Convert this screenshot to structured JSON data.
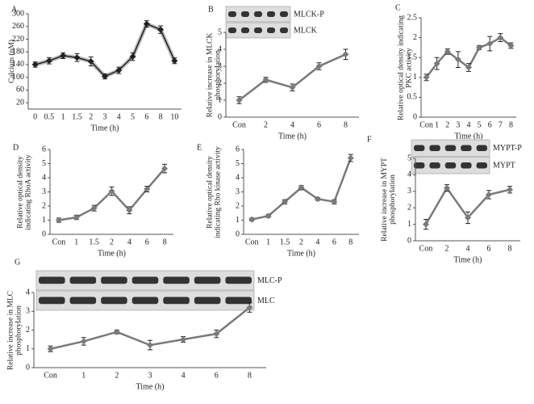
{
  "chart_data": [
    {
      "type": "line",
      "panel_label": "A",
      "ylabel": "Calcium (nM)",
      "xlabel": "Time (h)",
      "categories": [
        "0",
        "0.5",
        "1",
        "1.5",
        "2",
        "3",
        "4",
        "5",
        "6",
        "8",
        "10"
      ],
      "series": [
        {
          "color": "#222222",
          "values": [
            140,
            152,
            168,
            162,
            150,
            103,
            122,
            165,
            268,
            250,
            152
          ],
          "errors": [
            8,
            10,
            9,
            12,
            14,
            8,
            10,
            12,
            10,
            12,
            9
          ]
        }
      ],
      "ylim": [
        0,
        300
      ],
      "yticks": [
        20,
        60,
        100,
        140,
        180,
        220,
        260,
        300
      ]
    },
    {
      "type": "line",
      "panel_label": "B",
      "ylabel": "Relative increase in MLCK phosphorylation",
      "xlabel": "Time (h)",
      "blot_labels": [
        "MLCK-P",
        "MLCK"
      ],
      "categories": [
        "Con",
        "2",
        "4",
        "6",
        "8"
      ],
      "series": [
        {
          "color": "#7a7a7a",
          "values": [
            1,
            2.2,
            1.75,
            3,
            3.7
          ],
          "errors": [
            0.2,
            0.15,
            0.2,
            0.2,
            0.3
          ]
        }
      ],
      "ylim": [
        0,
        5
      ],
      "yticks": [
        0,
        1,
        2,
        3,
        4,
        5
      ]
    },
    {
      "type": "line",
      "panel_label": "C",
      "ylabel": "Relative optical density indicating PKC activity",
      "xlabel": "Time (h)",
      "categories": [
        "Con",
        "1",
        "2",
        "3",
        "4",
        "5",
        "6",
        "7",
        "8"
      ],
      "series": [
        {
          "color": "#7a7a7a",
          "values": [
            1,
            1.35,
            1.65,
            1.45,
            1.25,
            1.75,
            1.85,
            2.0,
            1.8
          ],
          "errors": [
            0.08,
            0.15,
            0.07,
            0.2,
            0.1,
            0.05,
            0.18,
            0.1,
            0.07
          ]
        }
      ],
      "ylim": [
        0,
        2.5
      ],
      "yticks": [
        0,
        0.5,
        1,
        1.5,
        2,
        2.5
      ]
    },
    {
      "type": "line",
      "panel_label": "D",
      "ylabel": "Relative optical density indicating RhoA activity",
      "xlabel": "Time (h)",
      "categories": [
        "Con",
        "1",
        "1.5",
        "2",
        "4",
        "6",
        "8"
      ],
      "series": [
        {
          "color": "#7a7a7a",
          "values": [
            1,
            1.2,
            1.85,
            3.05,
            1.7,
            3.2,
            4.65
          ],
          "errors": [
            0.15,
            0.15,
            0.2,
            0.3,
            0.25,
            0.2,
            0.3
          ]
        }
      ],
      "ylim": [
        0,
        6
      ],
      "yticks": [
        0,
        1,
        2,
        3,
        4,
        5,
        6
      ]
    },
    {
      "type": "line",
      "panel_label": "E",
      "ylabel": "Relative optical density indicating Rho kinase activity",
      "xlabel": "Time (h)",
      "categories": [
        "Con",
        "1",
        "1.5",
        "2",
        "4",
        "6",
        "8"
      ],
      "series": [
        {
          "color": "#7a7a7a",
          "values": [
            1.05,
            1.3,
            2.3,
            3.3,
            2.5,
            2.3,
            5.4
          ],
          "errors": [
            0.1,
            0.1,
            0.15,
            0.15,
            0.1,
            0.15,
            0.25
          ]
        }
      ],
      "ylim": [
        0,
        6
      ],
      "yticks": [
        0,
        1,
        2,
        3,
        4,
        5,
        6
      ]
    },
    {
      "type": "line",
      "panel_label": "F",
      "ylabel": "Relative increase in MYPT phosphorylation",
      "xlabel": "Time (h)",
      "blot_labels": [
        "MYPT-P",
        "MYPT"
      ],
      "categories": [
        "Con",
        "2",
        "4",
        "6",
        "8"
      ],
      "series": [
        {
          "color": "#7a7a7a",
          "values": [
            1,
            3.2,
            1.4,
            2.8,
            3.1
          ],
          "errors": [
            0.3,
            0.2,
            0.35,
            0.25,
            0.2
          ]
        }
      ],
      "ylim": [
        0,
        5
      ],
      "yticks": [
        0,
        1,
        2,
        3,
        4,
        5
      ]
    },
    {
      "type": "line",
      "panel_label": "G",
      "ylabel": "Relative increase in MLC phosphorylation",
      "xlabel": "Time (h)",
      "blot_labels": [
        "MLC-P",
        "MLC"
      ],
      "categories": [
        "Con",
        "1",
        "2",
        "3",
        "4",
        "6",
        "8"
      ],
      "series": [
        {
          "color": "#7a7a7a",
          "values": [
            1,
            1.4,
            1.9,
            1.2,
            1.5,
            1.8,
            3.2
          ],
          "errors": [
            0.15,
            0.2,
            0.1,
            0.25,
            0.15,
            0.2,
            0.25
          ]
        }
      ],
      "ylim": [
        0,
        4
      ],
      "yticks": [
        0,
        1,
        2,
        3,
        4
      ]
    }
  ]
}
